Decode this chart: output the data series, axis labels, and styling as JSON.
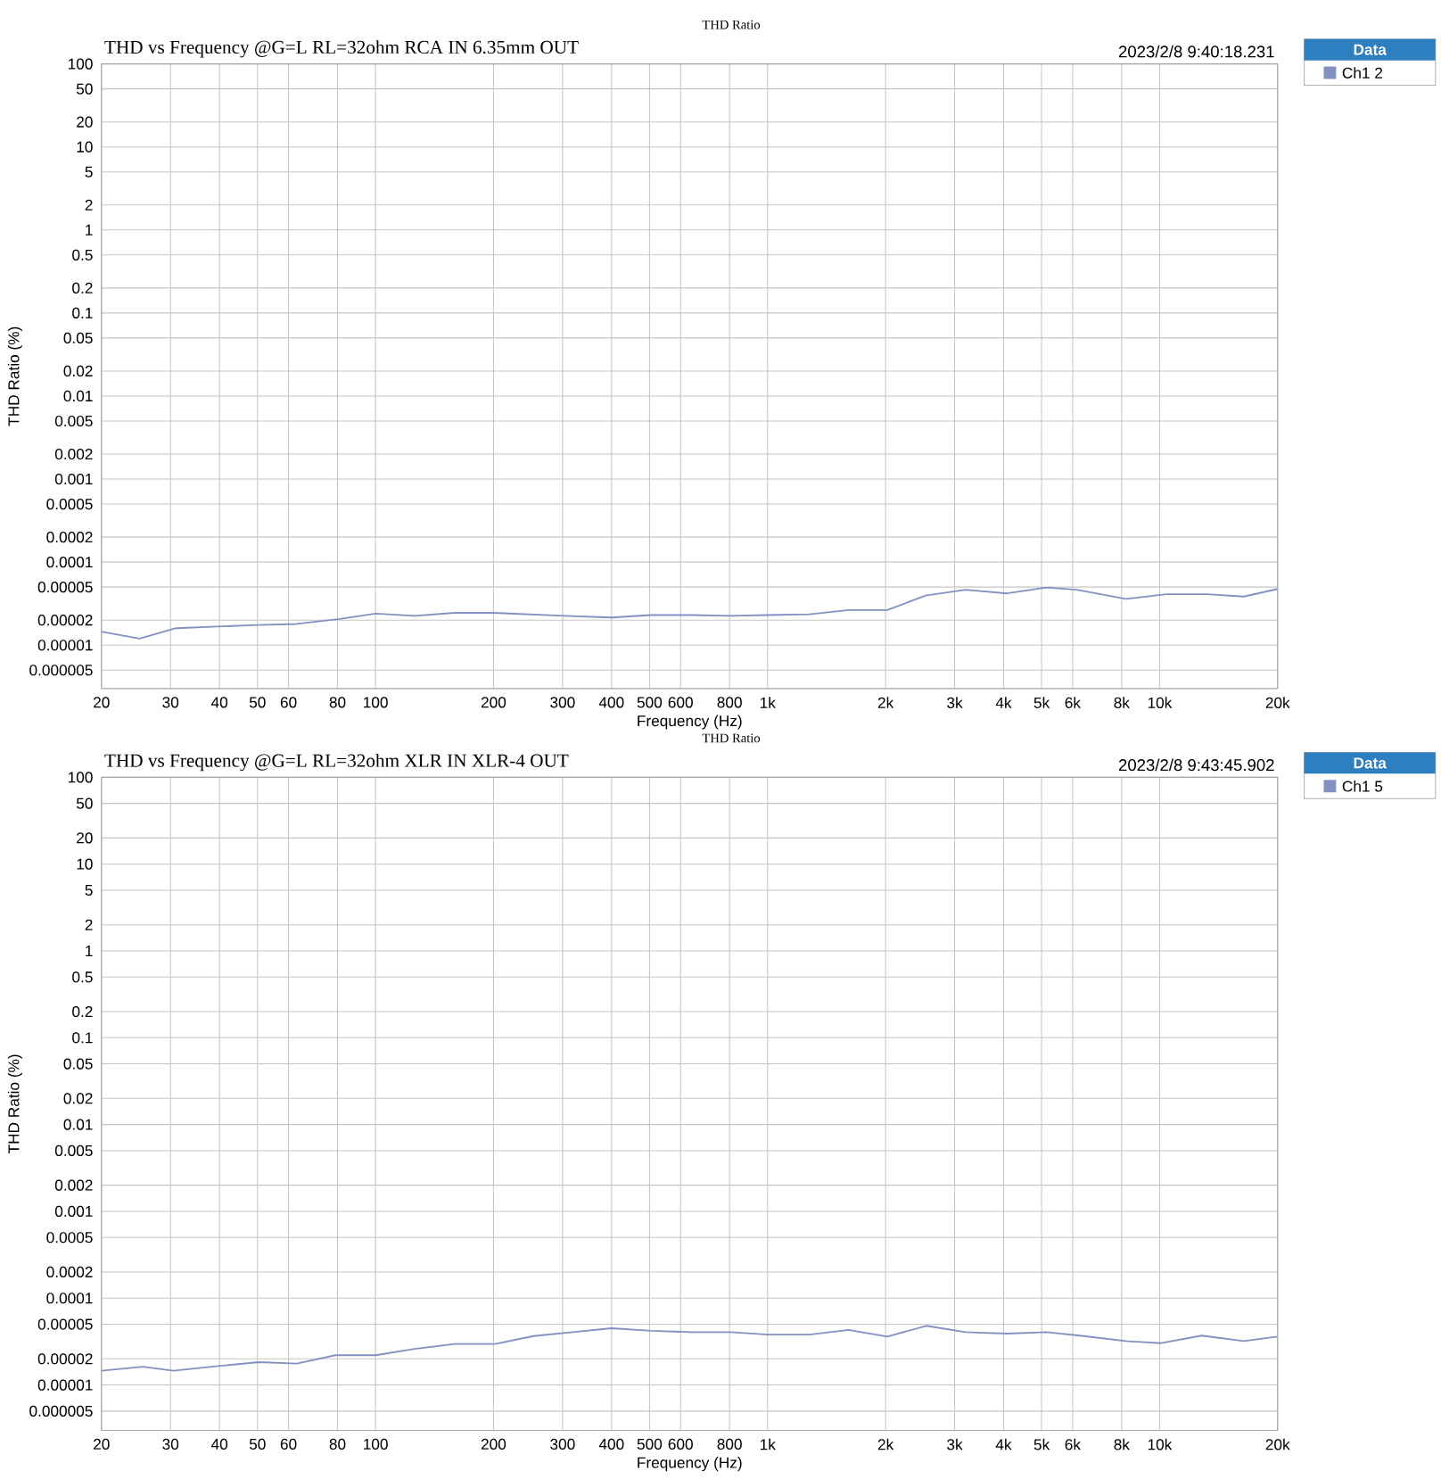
{
  "chart_data": [
    {
      "type": "line",
      "title": "THD Ratio",
      "subtitle": "THD vs Frequency @G=L RL=32ohm  RCA IN 6.35mm OUT",
      "annotations": [
        "2023/2/8 9:40:18.231"
      ],
      "xlabel": "Frequency (Hz)",
      "ylabel": "THD Ratio (%)",
      "legend_title": "Data",
      "legend": "top right",
      "log": "xy",
      "grid": true,
      "xlim": [
        20,
        20000
      ],
      "ylim": [
        3e-06,
        100
      ],
      "xticks": [
        20,
        30,
        40,
        50,
        60,
        80,
        100,
        200,
        300,
        400,
        500,
        600,
        800,
        {
          "value": 1000,
          "label": "1k"
        },
        {
          "value": 2000,
          "label": "2k"
        },
        {
          "value": 3000,
          "label": "3k"
        },
        {
          "value": 4000,
          "label": "4k"
        },
        {
          "value": 5000,
          "label": "5k"
        },
        {
          "value": 6000,
          "label": "6k"
        },
        {
          "value": 8000,
          "label": "8k"
        },
        {
          "value": 10000,
          "label": "10k"
        },
        {
          "value": 20000,
          "label": "20k"
        }
      ],
      "yticks": [
        100,
        50,
        20,
        10,
        5,
        2,
        1,
        0.5,
        0.2,
        0.1,
        0.05,
        0.02,
        0.01,
        0.005,
        0.002,
        0.001,
        0.0005,
        0.0002,
        0.0001,
        {
          "value": 5e-05,
          "label": "0.00005"
        },
        {
          "value": 2e-05,
          "label": "0.00002"
        },
        {
          "value": 1e-05,
          "label": "0.00001"
        },
        {
          "value": 5e-06,
          "label": "0.000005"
        }
      ],
      "x": [
        20,
        25,
        31,
        50,
        63,
        81,
        100,
        126,
        159,
        200,
        303,
        400,
        505,
        640,
        806,
        1000,
        1280,
        1610,
        2020,
        2530,
        3200,
        4080,
        5150,
        6150,
        8200,
        10400,
        13200,
        16400,
        20000
      ],
      "series": [
        {
          "name": "Ch1 2",
          "color": "#8391c2",
          "values": [
            1.45e-05,
            1.2e-05,
            1.6e-05,
            1.75e-05,
            1.8e-05,
            2.07e-05,
            2.4e-05,
            2.25e-05,
            2.45e-05,
            2.45e-05,
            2.25e-05,
            2.15e-05,
            2.3e-05,
            2.3e-05,
            2.25e-05,
            2.3e-05,
            2.35e-05,
            2.65e-05,
            2.65e-05,
            3.95e-05,
            4.65e-05,
            4.2e-05,
            4.95e-05,
            4.65e-05,
            3.6e-05,
            4.1e-05,
            4.1e-05,
            3.85e-05,
            4.75e-05
          ]
        }
      ]
    },
    {
      "type": "line",
      "title": "THD Ratio",
      "subtitle": "THD vs Frequency @G=L RL=32ohm XLR IN XLR-4 OUT",
      "annotations": [
        "2023/2/8 9:43:45.902"
      ],
      "xlabel": "Frequency (Hz)",
      "ylabel": "THD Ratio (%)",
      "legend_title": "Data",
      "legend": "top right",
      "log": "xy",
      "grid": true,
      "xlim": [
        20,
        20000
      ],
      "ylim": [
        3e-06,
        100
      ],
      "xticks": [
        20,
        30,
        40,
        50,
        60,
        80,
        100,
        200,
        300,
        400,
        500,
        600,
        800,
        {
          "value": 1000,
          "label": "1k"
        },
        {
          "value": 2000,
          "label": "2k"
        },
        {
          "value": 3000,
          "label": "3k"
        },
        {
          "value": 4000,
          "label": "4k"
        },
        {
          "value": 5000,
          "label": "5k"
        },
        {
          "value": 6000,
          "label": "6k"
        },
        {
          "value": 8000,
          "label": "8k"
        },
        {
          "value": 10000,
          "label": "10k"
        },
        {
          "value": 20000,
          "label": "20k"
        }
      ],
      "yticks": [
        100,
        50,
        20,
        10,
        5,
        2,
        1,
        0.5,
        0.2,
        0.1,
        0.05,
        0.02,
        0.01,
        0.005,
        0.002,
        0.001,
        0.0005,
        0.0002,
        0.0001,
        {
          "value": 5e-05,
          "label": "0.00005"
        },
        {
          "value": 2e-05,
          "label": "0.00002"
        },
        {
          "value": 1e-05,
          "label": "0.00001"
        },
        {
          "value": 5e-06,
          "label": "0.000005"
        }
      ],
      "x": [
        20,
        25.5,
        30.5,
        39.7,
        50.4,
        63,
        79,
        100,
        126,
        159,
        202,
        253,
        318,
        400,
        505,
        640,
        806,
        1000,
        1280,
        1610,
        2020,
        2540,
        3200,
        4080,
        5150,
        6400,
        8200,
        10100,
        12800,
        16400,
        20000
      ],
      "series": [
        {
          "name": "Ch1 5",
          "color": "#8391c2",
          "values": [
            1.46e-05,
            1.62e-05,
            1.46e-05,
            1.65e-05,
            1.83e-05,
            1.76e-05,
            2.2e-05,
            2.2e-05,
            2.6e-05,
            2.97e-05,
            2.97e-05,
            3.66e-05,
            4.06e-05,
            4.5e-05,
            4.2e-05,
            4.06e-05,
            4.06e-05,
            3.8e-05,
            3.8e-05,
            4.3e-05,
            3.6e-05,
            4.8e-05,
            4.06e-05,
            3.9e-05,
            4.06e-05,
            3.66e-05,
            3.2e-05,
            3.03e-05,
            3.7e-05,
            3.2e-05,
            3.6e-05
          ]
        }
      ]
    }
  ]
}
